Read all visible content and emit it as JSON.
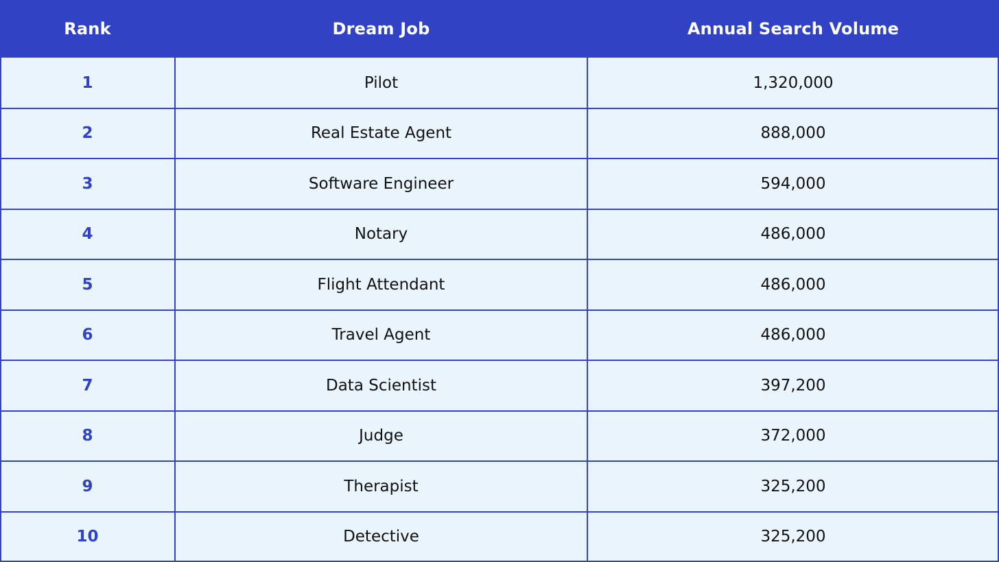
{
  "table": {
    "headers": {
      "rank": "Rank",
      "job": "Dream Job",
      "volume": "Annual Search Volume"
    },
    "rows": [
      {
        "rank": "1",
        "job": "Pilot",
        "volume": "1,320,000"
      },
      {
        "rank": "2",
        "job": "Real Estate Agent",
        "volume": "888,000"
      },
      {
        "rank": "3",
        "job": "Software Engineer",
        "volume": "594,000"
      },
      {
        "rank": "4",
        "job": "Notary",
        "volume": "486,000"
      },
      {
        "rank": "5",
        "job": "Flight Attendant",
        "volume": "486,000"
      },
      {
        "rank": "6",
        "job": "Travel Agent",
        "volume": "486,000"
      },
      {
        "rank": "7",
        "job": "Data Scientist",
        "volume": "397,200"
      },
      {
        "rank": "8",
        "job": "Judge",
        "volume": "372,000"
      },
      {
        "rank": "9",
        "job": "Therapist",
        "volume": "325,200"
      },
      {
        "rank": "10",
        "job": "Detective",
        "volume": "325,200"
      }
    ]
  },
  "colors": {
    "header_bg": "#3143c4",
    "row_bg": "#e9f4fd",
    "rank_text": "#3143c4",
    "grid": "#3143c4"
  }
}
